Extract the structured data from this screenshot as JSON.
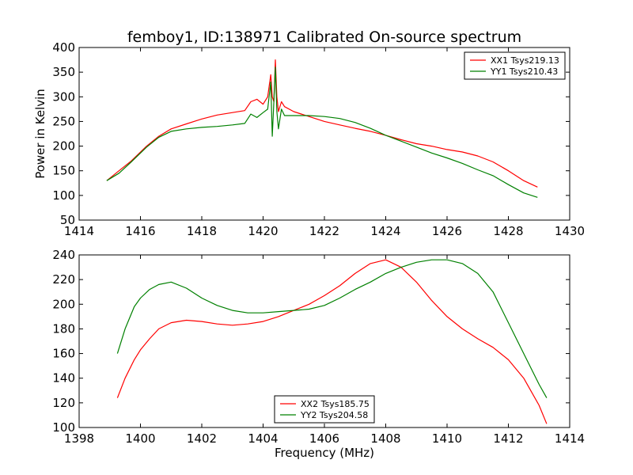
{
  "figure": {
    "title": "femboy1, ID:138971 Calibrated On-source spectrum",
    "background": "#ffffff"
  },
  "chart_data": [
    {
      "type": "line",
      "title": "femboy1, ID:138971 Calibrated On-source spectrum",
      "xlabel": "",
      "ylabel": "Power in Kelvin",
      "xlim": [
        1414,
        1430
      ],
      "ylim": [
        50,
        400
      ],
      "xticks": [
        1414,
        1416,
        1418,
        1420,
        1422,
        1424,
        1426,
        1428,
        1430
      ],
      "xtick_labels": [
        "1414",
        "1416",
        "1418",
        "1420",
        "1422",
        "1424",
        "1426",
        "1428",
        "1430"
      ],
      "yticks": [
        50,
        100,
        150,
        200,
        250,
        300,
        350,
        400
      ],
      "ytick_labels": [
        "50",
        "100",
        "150",
        "200",
        "250",
        "300",
        "350",
        "400"
      ],
      "grid": false,
      "legend_position": "top-right",
      "series": [
        {
          "name": "XX1 Tsys219.13",
          "color": "#ff0000",
          "x": [
            1414.9,
            1415.3,
            1415.7,
            1416.2,
            1416.6,
            1417.0,
            1417.5,
            1418.0,
            1418.5,
            1419.0,
            1419.4,
            1419.6,
            1419.8,
            1420.0,
            1420.15,
            1420.25,
            1420.3,
            1420.35,
            1420.4,
            1420.45,
            1420.5,
            1420.6,
            1420.7,
            1421.0,
            1421.5,
            1422.0,
            1422.5,
            1423.0,
            1423.5,
            1424.0,
            1424.5,
            1425.0,
            1425.5,
            1426.0,
            1426.5,
            1427.0,
            1427.5,
            1428.0,
            1428.5,
            1428.95
          ],
          "values": [
            130,
            150,
            170,
            200,
            220,
            235,
            245,
            255,
            263,
            268,
            272,
            290,
            295,
            285,
            300,
            345,
            300,
            290,
            375,
            300,
            270,
            290,
            280,
            270,
            260,
            250,
            243,
            236,
            230,
            222,
            213,
            205,
            200,
            193,
            188,
            180,
            168,
            150,
            130,
            117
          ]
        },
        {
          "name": "YY1 Tsys210.43",
          "color": "#008000",
          "x": [
            1414.9,
            1415.3,
            1415.7,
            1416.2,
            1416.6,
            1417.0,
            1417.5,
            1418.0,
            1418.5,
            1419.0,
            1419.4,
            1419.6,
            1419.8,
            1420.0,
            1420.15,
            1420.25,
            1420.3,
            1420.35,
            1420.4,
            1420.45,
            1420.5,
            1420.6,
            1420.7,
            1421.0,
            1421.5,
            1422.0,
            1422.5,
            1423.0,
            1423.5,
            1424.0,
            1424.5,
            1425.0,
            1425.5,
            1426.0,
            1426.5,
            1427.0,
            1427.5,
            1428.0,
            1428.5,
            1428.95
          ],
          "values": [
            130,
            145,
            168,
            198,
            218,
            230,
            235,
            238,
            240,
            243,
            246,
            265,
            258,
            268,
            275,
            330,
            220,
            290,
            360,
            270,
            235,
            275,
            262,
            262,
            262,
            260,
            256,
            248,
            236,
            222,
            210,
            198,
            186,
            176,
            165,
            152,
            140,
            122,
            105,
            96
          ]
        }
      ]
    },
    {
      "type": "line",
      "title": "",
      "xlabel": "Frequency (MHz)",
      "ylabel": "",
      "xlim": [
        1398,
        1414
      ],
      "ylim": [
        100,
        240
      ],
      "xticks": [
        1398,
        1400,
        1402,
        1404,
        1406,
        1408,
        1410,
        1412,
        1414
      ],
      "xtick_labels": [
        "1398",
        "1400",
        "1402",
        "1404",
        "1406",
        "1408",
        "1410",
        "1412",
        "1414"
      ],
      "yticks": [
        100,
        120,
        140,
        160,
        180,
        200,
        220,
        240
      ],
      "ytick_labels": [
        "100",
        "120",
        "140",
        "160",
        "180",
        "200",
        "220",
        "240"
      ],
      "grid": false,
      "legend_position": "bottom-center",
      "series": [
        {
          "name": "XX2 Tsys185.75",
          "color": "#ff0000",
          "x": [
            1399.25,
            1399.5,
            1399.8,
            1400.0,
            1400.3,
            1400.6,
            1401.0,
            1401.5,
            1402.0,
            1402.5,
            1403.0,
            1403.5,
            1404.0,
            1404.5,
            1405.0,
            1405.5,
            1406.0,
            1406.5,
            1407.0,
            1407.5,
            1408.0,
            1408.5,
            1409.0,
            1409.5,
            1410.0,
            1410.5,
            1411.0,
            1411.5,
            1412.0,
            1412.5,
            1413.0,
            1413.25
          ],
          "values": [
            124,
            140,
            155,
            163,
            172,
            180,
            185,
            187,
            186,
            184,
            183,
            184,
            186,
            190,
            195,
            200,
            207,
            215,
            225,
            233,
            236,
            230,
            218,
            203,
            190,
            180,
            172,
            165,
            155,
            140,
            118,
            103
          ]
        },
        {
          "name": "YY2 Tsys204.58",
          "color": "#008000",
          "x": [
            1399.25,
            1399.5,
            1399.8,
            1400.0,
            1400.3,
            1400.6,
            1401.0,
            1401.5,
            1402.0,
            1402.5,
            1403.0,
            1403.5,
            1404.0,
            1404.5,
            1405.0,
            1405.5,
            1406.0,
            1406.5,
            1407.0,
            1407.5,
            1408.0,
            1408.5,
            1409.0,
            1409.5,
            1410.0,
            1410.5,
            1411.0,
            1411.5,
            1412.0,
            1412.5,
            1413.0,
            1413.25
          ],
          "values": [
            160,
            180,
            198,
            205,
            212,
            216,
            218,
            213,
            205,
            199,
            195,
            193,
            193,
            194,
            195,
            196,
            199,
            205,
            212,
            218,
            225,
            230,
            234,
            236,
            236,
            233,
            225,
            210,
            185,
            160,
            135,
            124
          ]
        }
      ]
    }
  ]
}
